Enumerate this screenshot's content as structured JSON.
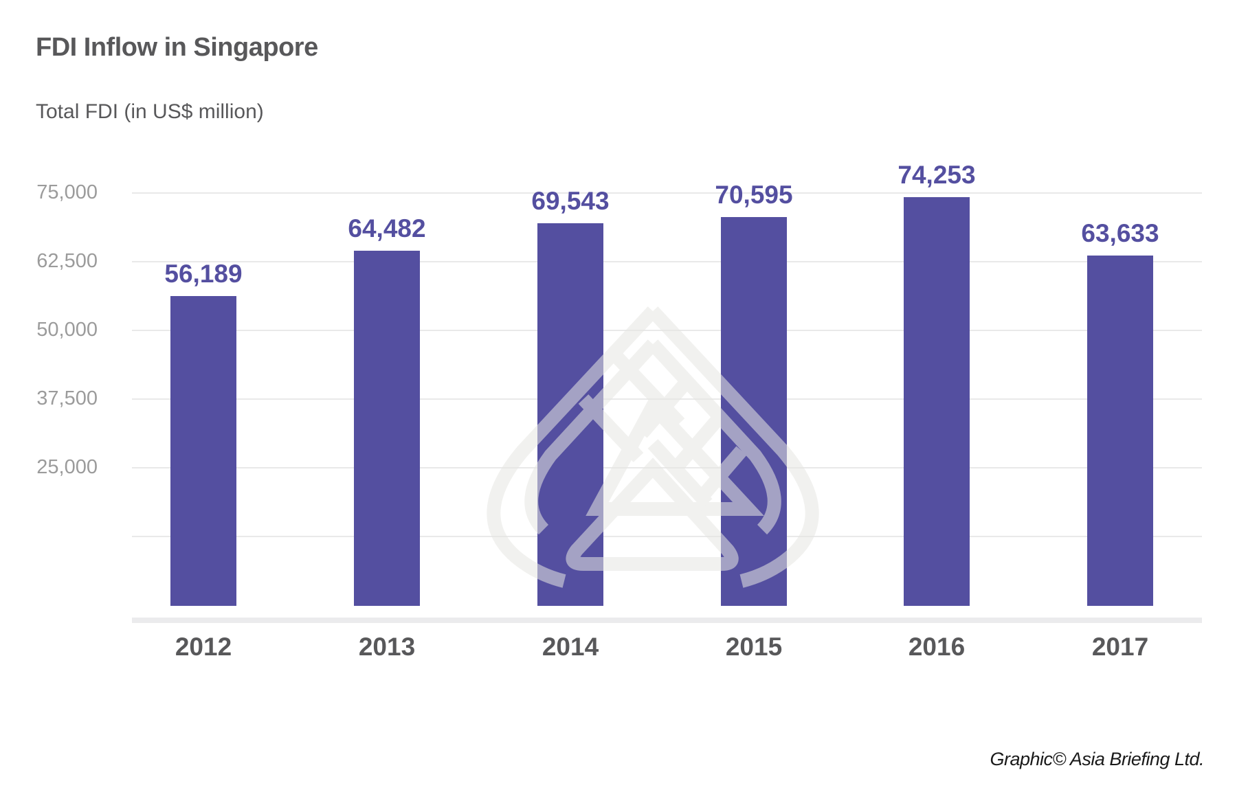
{
  "header": {
    "title": "FDI Inflow in Singapore",
    "subtitle": "Total FDI (in US$ million)"
  },
  "footer": {
    "credit": "Graphic© Asia Briefing Ltd."
  },
  "colors": {
    "bar": "#544fa0",
    "value_label": "#544fa0",
    "title": "#58585a",
    "tick_label": "#9b9b9b",
    "gridline": "#e9e9e9",
    "watermark": "#f0f0ee"
  },
  "watermark": {
    "icon": "asia-briefing-logo-icon"
  },
  "axis": {
    "y_ticks": [
      {
        "label": "75,000",
        "value": 75000
      },
      {
        "label": "62,500",
        "value": 62500
      },
      {
        "label": "50,000",
        "value": 50000
      },
      {
        "label": "37,500",
        "value": 37500
      },
      {
        "label": "25,000",
        "value": 25000
      },
      {
        "label": "",
        "value": 12500
      }
    ],
    "x_ticks": [
      "2012",
      "2013",
      "2014",
      "2015",
      "2016",
      "2017"
    ]
  },
  "bars": [
    {
      "year": "2012",
      "value": 56189,
      "label": "56,189"
    },
    {
      "year": "2013",
      "value": 64482,
      "label": "64,482"
    },
    {
      "year": "2014",
      "value": 69543,
      "label": "69,543"
    },
    {
      "year": "2015",
      "value": 70595,
      "label": "70,595"
    },
    {
      "year": "2016",
      "value": 74253,
      "label": "74,253"
    },
    {
      "year": "2017",
      "value": 63633,
      "label": "63,633"
    }
  ],
  "chart_data": {
    "type": "bar",
    "title": "FDI Inflow in Singapore",
    "subtitle": "Total FDI (in US$ million)",
    "categories": [
      "2012",
      "2013",
      "2014",
      "2015",
      "2016",
      "2017"
    ],
    "values": [
      56189,
      64482,
      69543,
      70595,
      74253,
      63633
    ],
    "data_labels": [
      "56,189",
      "64,482",
      "69,543",
      "70,595",
      "74,253",
      "63,633"
    ],
    "xlabel": "",
    "ylabel": "Total FDI (in US$ million)",
    "y_tick_labels": [
      "75,000",
      "62,500",
      "50,000",
      "37,500",
      "25,000"
    ],
    "y_tick_values": [
      75000,
      62500,
      50000,
      37500,
      25000,
      12500
    ],
    "ylim": [
      0,
      75000
    ],
    "grid": true,
    "legend": null,
    "bar_color": "#544fa0",
    "source": "Graphic© Asia Briefing Ltd."
  }
}
